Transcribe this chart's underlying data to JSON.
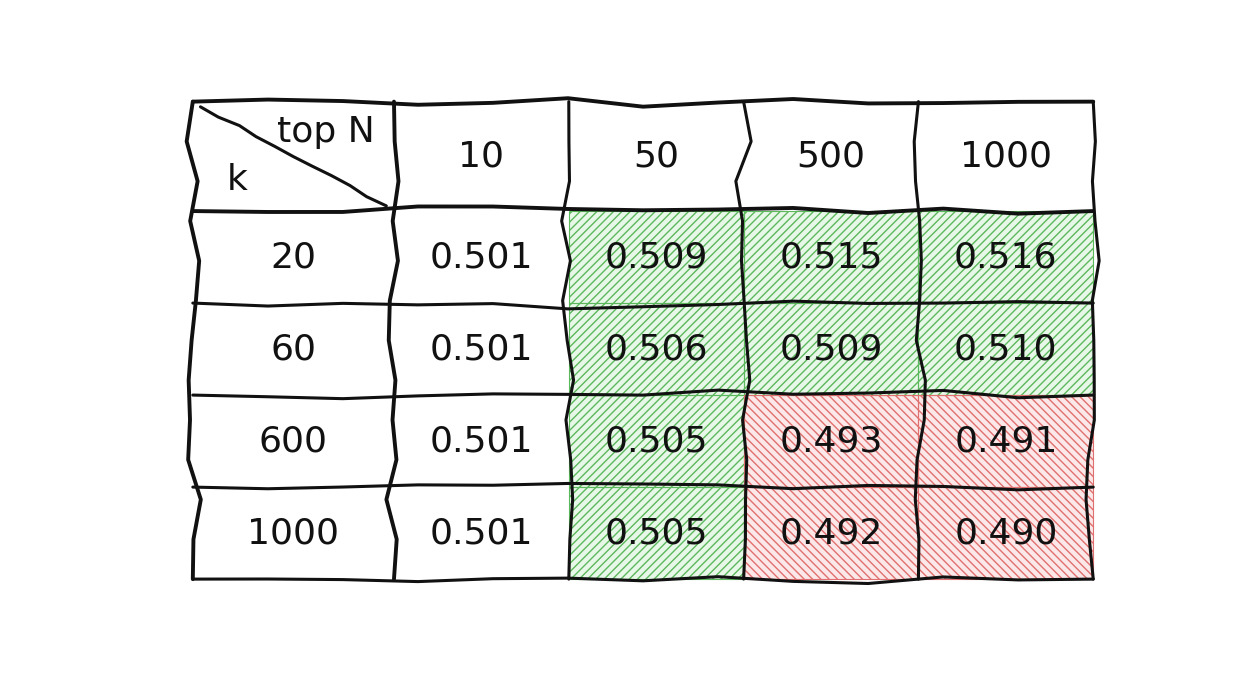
{
  "col_headers": [
    "10",
    "50",
    "500",
    "1000"
  ],
  "row_headers": [
    "20",
    "60",
    "600",
    "1000"
  ],
  "values": [
    [
      "0.501",
      "0.509",
      "0.515",
      "0.516"
    ],
    [
      "0.501",
      "0.506",
      "0.509",
      "0.510"
    ],
    [
      "0.501",
      "0.505",
      "0.493",
      "0.491"
    ],
    [
      "0.501",
      "0.505",
      "0.492",
      "0.490"
    ]
  ],
  "cell_colors": [
    [
      "white",
      "green",
      "green",
      "green"
    ],
    [
      "white",
      "green",
      "green",
      "green"
    ],
    [
      "white",
      "green",
      "red",
      "red"
    ],
    [
      "white",
      "green",
      "red",
      "red"
    ]
  ],
  "header_label_top": "top N",
  "header_label_left": "k",
  "fig_width": 12.36,
  "fig_height": 6.74,
  "font_size": 26,
  "header_font_size": 26,
  "green_bg": "#e8f8e8",
  "red_bg": "#fce8e8",
  "white_bg": "#ffffff",
  "green_hatch": "#5cb85c",
  "red_hatch": "#e07070",
  "line_color": "#111111",
  "text_color": "#111111"
}
